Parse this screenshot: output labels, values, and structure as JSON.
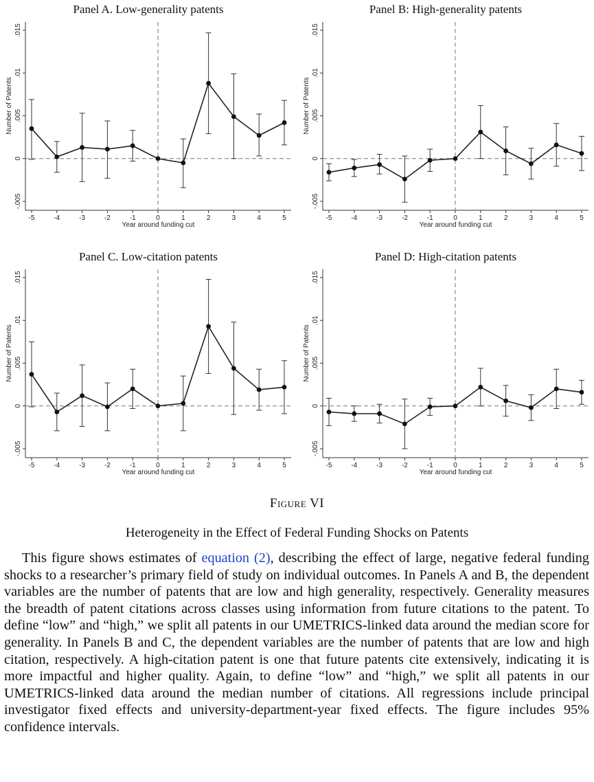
{
  "figure": {
    "label": "Figure VI",
    "title": "Heterogeneity in the Effect of Federal Funding Shocks on Patents"
  },
  "caption": {
    "before": "This figure shows estimates of ",
    "link": "equation (2)",
    "after": ", describing the effect of large, negative federal funding shocks to a researcher’s primary field of study on individual outcomes. In Panels A and B, the dependent variables are the number of patents that are low and high generality, respectively. Generality measures the breadth of patent citations across classes using information from future citations to the patent. To define “low” and “high,” we split all patents in our UMETRICS-linked data around the median score for generality. In Panels B and C, the dependent variables are the number of patents that are low and high citation, respectively. A high-citation patent is one that future patents cite extensively, indicating it is more impactful and higher quality. Again, to define “low” and “high,” we split all patents in our UMETRICS-linked data around the median number of citations. All regressions include principal investigator fixed effects and university-department-year fixed effects. The figure includes 95% confidence intervals."
  },
  "chart_data": [
    {
      "type": "line",
      "title": "Panel A. Low-generality patents",
      "xlabel": "Year around funding cut",
      "ylabel": "Number of Patents",
      "xlim": [
        -5,
        5
      ],
      "ylim": [
        -0.005,
        0.015
      ],
      "xticks": [
        "-5",
        "-4",
        "-3",
        "-2",
        "-1",
        "0",
        "1",
        "2",
        "3",
        "4",
        "5"
      ],
      "yticks": [
        "-.005",
        "0",
        ".005",
        ".01",
        ".015"
      ],
      "x": [
        -5,
        -4,
        -3,
        -2,
        -1,
        0,
        1,
        2,
        3,
        4,
        5
      ],
      "values": [
        0.0035,
        0.0002,
        0.0013,
        0.0011,
        0.0015,
        0.0,
        -0.0005,
        0.0088,
        0.0049,
        0.0027,
        0.0042
      ],
      "ci_low": [
        -0.0001,
        -0.0016,
        -0.0027,
        -0.0023,
        -0.0003,
        0.0,
        -0.0034,
        0.0029,
        0.0,
        0.0003,
        0.0016
      ],
      "ci_high": [
        0.0069,
        0.002,
        0.0053,
        0.0044,
        0.0033,
        0.0,
        0.0023,
        0.0147,
        0.0099,
        0.0052,
        0.0068
      ]
    },
    {
      "type": "line",
      "title": "Panel B: High-generality patents",
      "xlabel": "Year around funding cut",
      "ylabel": "Number of Patents",
      "xlim": [
        -5,
        5
      ],
      "ylim": [
        -0.005,
        0.015
      ],
      "xticks": [
        "-5",
        "-4",
        "-3",
        "-2",
        "-1",
        "0",
        "1",
        "2",
        "3",
        "4",
        "5"
      ],
      "yticks": [
        "-.005",
        "0",
        ".005",
        ".01",
        ".015"
      ],
      "x": [
        -5,
        -4,
        -3,
        -2,
        -1,
        0,
        1,
        2,
        3,
        4,
        5
      ],
      "values": [
        -0.0016,
        -0.0011,
        -0.0007,
        -0.0024,
        -0.0002,
        0.0,
        0.0031,
        0.0009,
        -0.0006,
        0.0016,
        0.0006
      ],
      "ci_low": [
        -0.0026,
        -0.0021,
        -0.0018,
        -0.0051,
        -0.0015,
        0.0,
        0.0,
        -0.0019,
        -0.0024,
        -0.0009,
        -0.0014
      ],
      "ci_high": [
        -0.0006,
        -0.0001,
        0.0005,
        0.0003,
        0.0011,
        0.0,
        0.0062,
        0.0037,
        0.0012,
        0.0041,
        0.0026
      ]
    },
    {
      "type": "line",
      "title": "Panel C. Low-citation patents",
      "xlabel": "Year around funding cut",
      "ylabel": "Number of Patents",
      "xlim": [
        -5,
        5
      ],
      "ylim": [
        -0.005,
        0.015
      ],
      "xticks": [
        "-5",
        "-4",
        "-3",
        "-2",
        "-1",
        "0",
        "1",
        "2",
        "3",
        "4",
        "5"
      ],
      "yticks": [
        "-.005",
        "0",
        ".005",
        ".01",
        ".015"
      ],
      "x": [
        -5,
        -4,
        -3,
        -2,
        -1,
        0,
        1,
        2,
        3,
        4,
        5
      ],
      "values": [
        0.0037,
        -0.0007,
        0.0012,
        -0.0001,
        0.002,
        0.0,
        0.0003,
        0.0093,
        0.0044,
        0.0019,
        0.0022
      ],
      "ci_low": [
        -0.0001,
        -0.0029,
        -0.0024,
        -0.0029,
        -0.0003,
        0.0,
        -0.0029,
        0.0038,
        -0.001,
        -0.0005,
        -0.0009
      ],
      "ci_high": [
        0.0075,
        0.0015,
        0.0048,
        0.0027,
        0.0043,
        0.0,
        0.0035,
        0.0148,
        0.0098,
        0.0043,
        0.0053
      ]
    },
    {
      "type": "line",
      "title": "Panel D: High-citation patents",
      "xlabel": "Year around funding cut",
      "ylabel": "Number of Patents",
      "xlim": [
        -5,
        5
      ],
      "ylim": [
        -0.005,
        0.015
      ],
      "xticks": [
        "-5",
        "-4",
        "-3",
        "-2",
        "-1",
        "0",
        "1",
        "2",
        "3",
        "4",
        "5"
      ],
      "yticks": [
        "-.005",
        "0",
        ".005",
        ".01",
        ".015"
      ],
      "x": [
        -5,
        -4,
        -3,
        -2,
        -1,
        0,
        1,
        2,
        3,
        4,
        5
      ],
      "values": [
        -0.0007,
        -0.0009,
        -0.0009,
        -0.0021,
        -0.0001,
        0.0,
        0.0022,
        0.0006,
        -0.0002,
        0.002,
        0.0016
      ],
      "ci_low": [
        -0.0023,
        -0.0018,
        -0.002,
        -0.005,
        -0.0011,
        0.0,
        0.0,
        -0.0012,
        -0.0017,
        -0.0003,
        0.0002
      ],
      "ci_high": [
        0.0009,
        0.0,
        0.0002,
        0.0008,
        0.0009,
        0.0,
        0.0044,
        0.0024,
        0.0013,
        0.0043,
        0.003
      ]
    }
  ]
}
